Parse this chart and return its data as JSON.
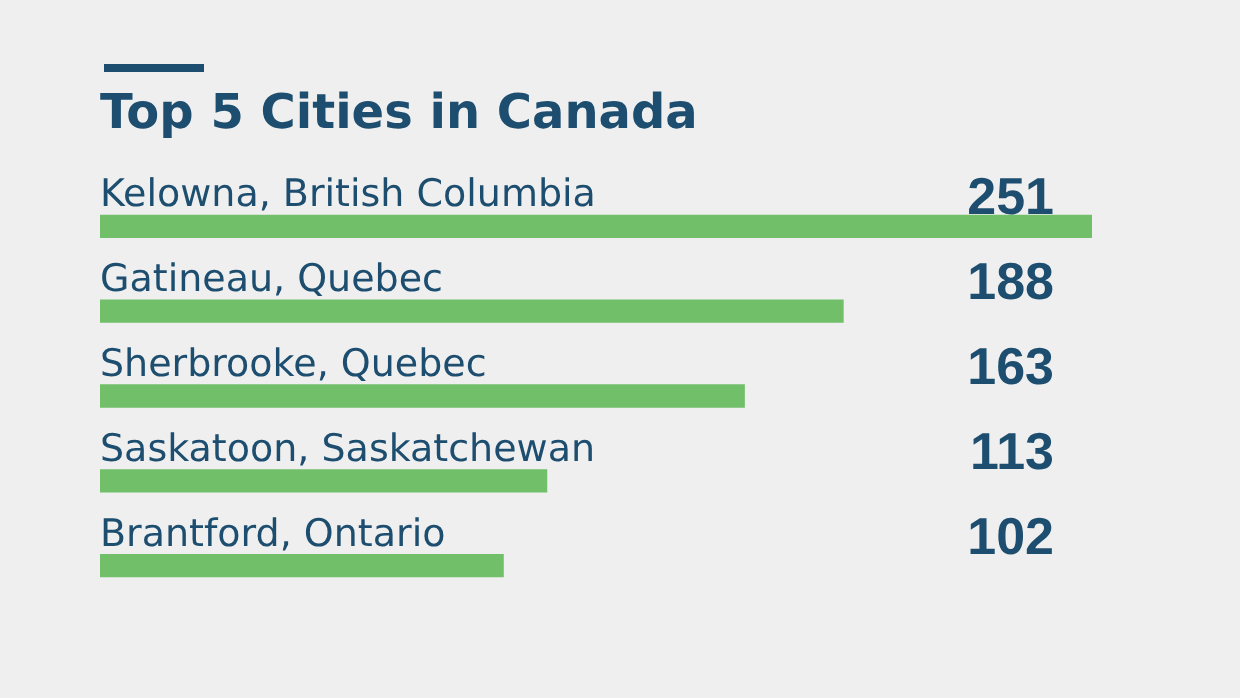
{
  "chart_data": {
    "type": "bar",
    "orientation": "horizontal",
    "title": "Top 5 Cities in Canada",
    "categories": [
      "Kelowna, British Columbia",
      "Gatineau, Quebec",
      "Sherbrooke, Quebec",
      "Saskatoon, Saskatchewan",
      "Brantford, Ontario"
    ],
    "values": [
      251,
      188,
      163,
      113,
      102
    ],
    "color": "#72bf6a",
    "data_labels": true
  }
}
